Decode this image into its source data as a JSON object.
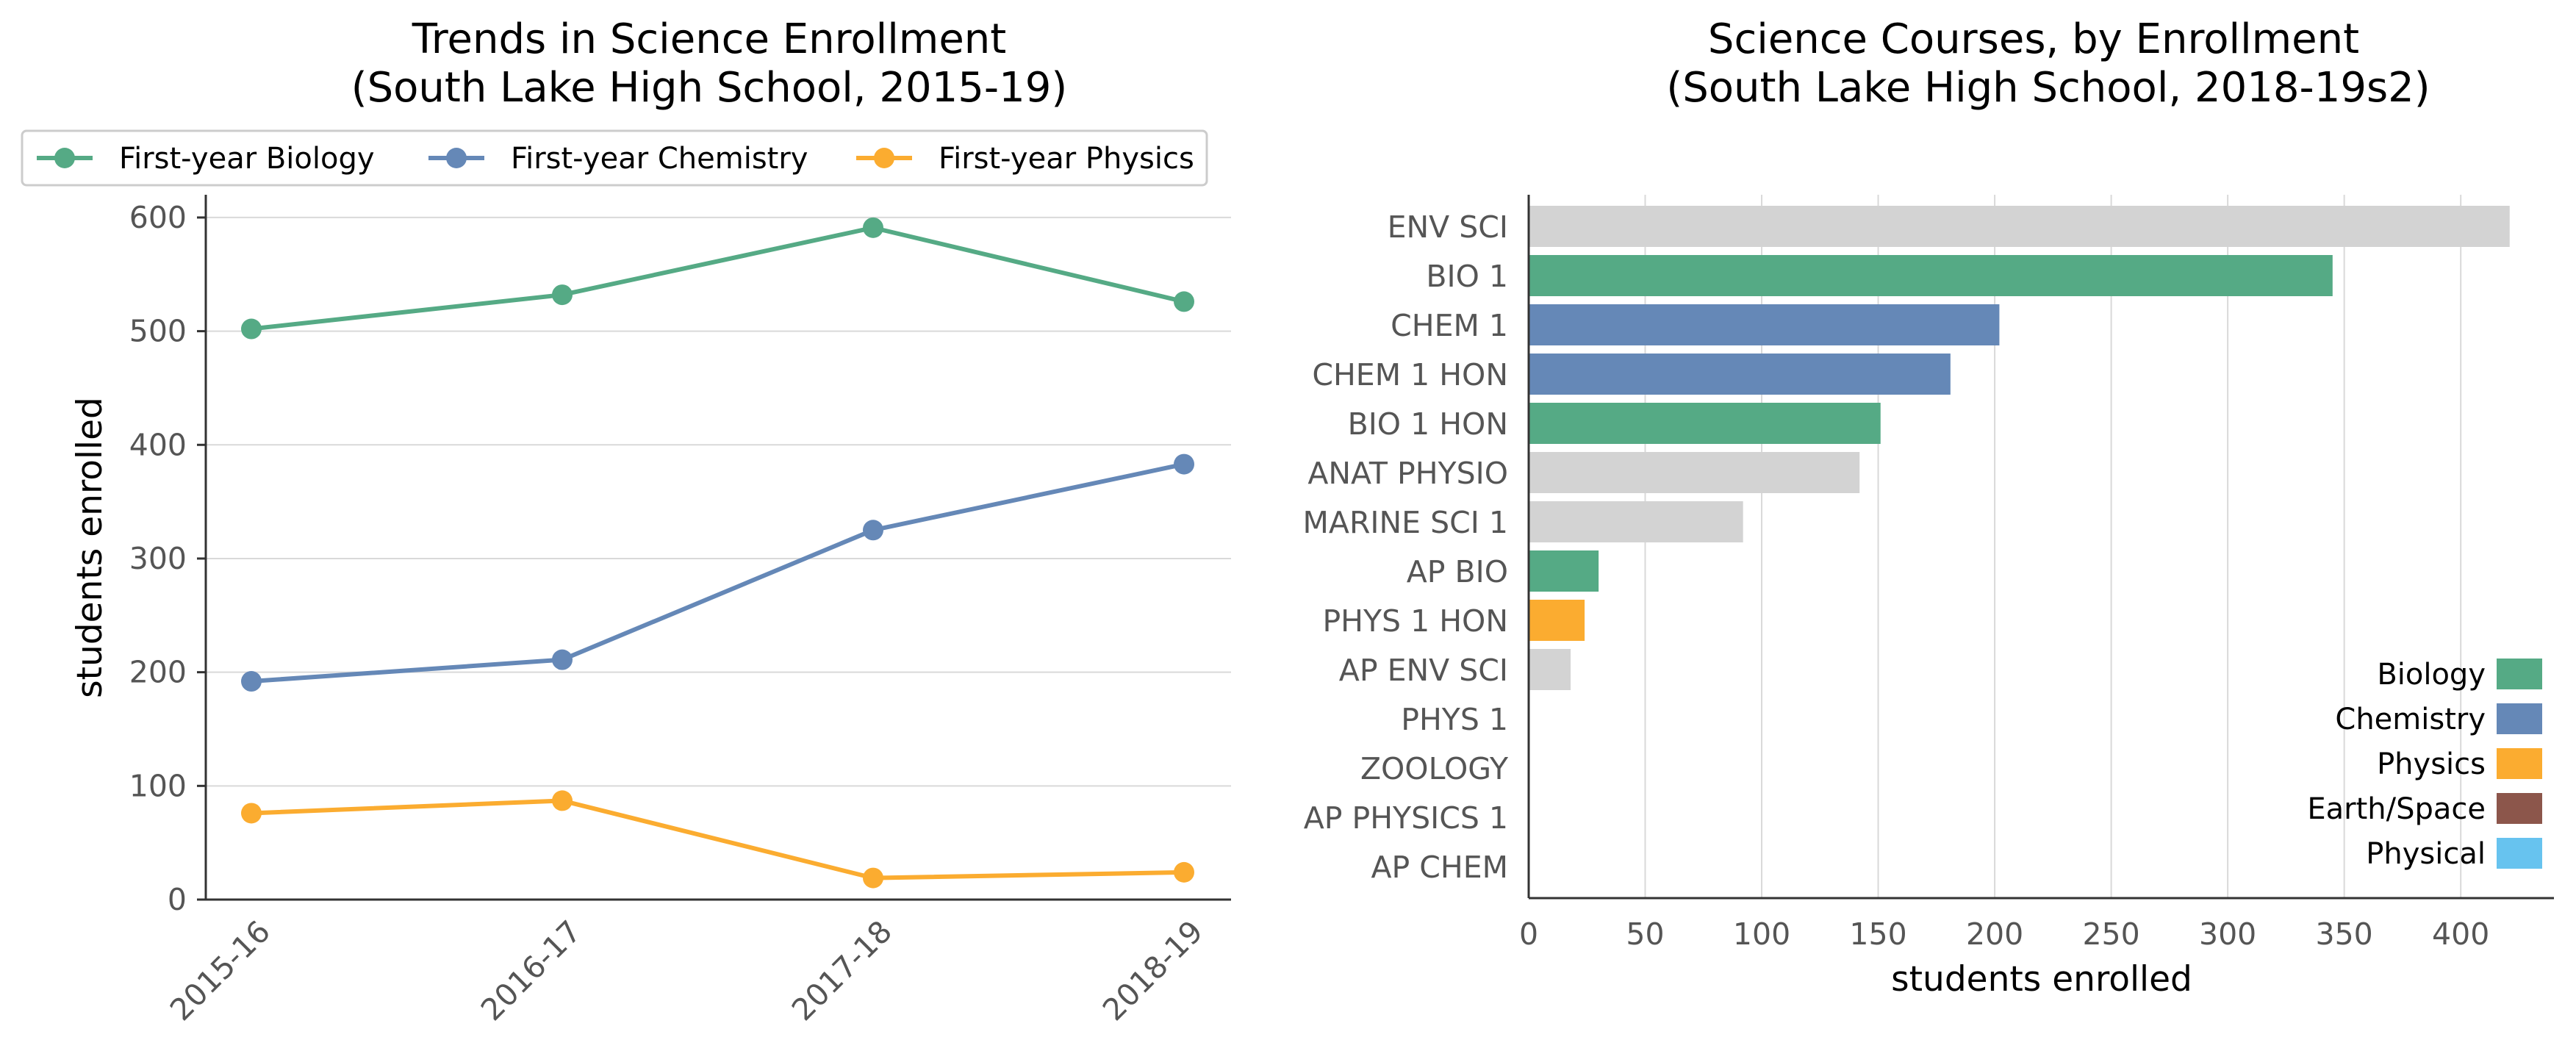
{
  "colors": {
    "biology": "#55aa85",
    "chemistry": "#6588b7",
    "physics": "#fbac30",
    "earth_space": "#8c564b",
    "physical": "#67c3ef",
    "other": "#d3d3d3"
  },
  "chart_data": [
    {
      "type": "line",
      "title_line1": "Trends in Science Enrollment",
      "title_line2": "(South Lake High School, 2015-19)",
      "xlabel": "",
      "ylabel": "students enrolled",
      "categories": [
        "2015-16",
        "2016-17",
        "2017-18",
        "2018-19"
      ],
      "ylim": [
        0,
        620
      ],
      "yticks": [
        0,
        100,
        200,
        300,
        400,
        500,
        600
      ],
      "grid": "horizontal",
      "legend_position": "top",
      "series": [
        {
          "name": "First-year Biology",
          "color_key": "biology",
          "values": [
            502,
            532,
            591,
            526
          ]
        },
        {
          "name": "First-year Chemistry",
          "color_key": "chemistry",
          "values": [
            192,
            211,
            325,
            383
          ]
        },
        {
          "name": "First-year Physics",
          "color_key": "physics",
          "values": [
            76,
            87,
            19,
            24
          ]
        }
      ]
    },
    {
      "type": "bar",
      "orientation": "horizontal",
      "title_line1": "Science Courses, by Enrollment",
      "title_line2": "(South Lake High School, 2018-19s2)",
      "xlabel": "students enrolled",
      "ylabel": "",
      "xlim": [
        0,
        440
      ],
      "xticks": [
        0,
        50,
        100,
        150,
        200,
        250,
        300,
        350,
        400
      ],
      "grid": "vertical",
      "legend_position": "lower-right",
      "categories": [
        "ENV SCI",
        "BIO 1",
        "CHEM 1",
        "CHEM 1 HON",
        "BIO 1 HON",
        "ANAT PHYSIO",
        "MARINE SCI 1",
        "AP BIO",
        "PHYS 1 HON",
        "AP ENV SCI",
        "PHYS 1",
        "ZOOLOGY",
        "AP PHYSICS 1",
        "AP CHEM"
      ],
      "values": [
        421,
        345,
        202,
        181,
        151,
        142,
        92,
        30,
        24,
        18,
        0,
        0,
        0,
        0
      ],
      "bar_color_keys": [
        "other",
        "biology",
        "chemistry",
        "chemistry",
        "biology",
        "other",
        "other",
        "biology",
        "physics",
        "other",
        "other",
        "other",
        "other",
        "other"
      ],
      "legend": [
        {
          "label": "Biology",
          "color_key": "biology"
        },
        {
          "label": "Chemistry",
          "color_key": "chemistry"
        },
        {
          "label": "Physics",
          "color_key": "physics"
        },
        {
          "label": "Earth/Space",
          "color_key": "earth_space"
        },
        {
          "label": "Physical",
          "color_key": "physical"
        }
      ]
    }
  ]
}
